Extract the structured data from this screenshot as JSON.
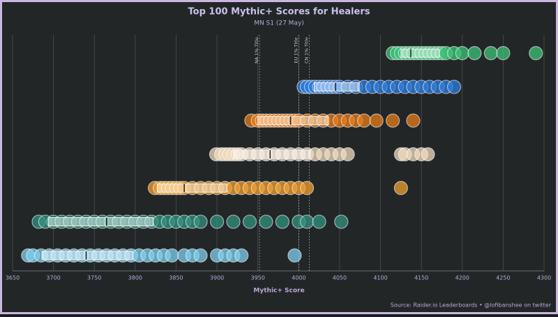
{
  "chart_data": {
    "type": "strip",
    "title": "Top 100 Mythic+ Scores for Healers",
    "subtitle": "MN S1 (27 May)",
    "xlabel": "Mythic+ Score",
    "source": "Source: Raider.io Leaderboards • @lofibanshee on twitter",
    "xlim": [
      3650,
      4300
    ],
    "xticks": [
      3650,
      3700,
      3750,
      3800,
      3850,
      3900,
      3950,
      4000,
      4050,
      4100,
      4150,
      4200,
      4250,
      4300
    ],
    "grid": true,
    "reference_lines": [
      {
        "value": 3952,
        "label": "NA 1% Title"
      },
      {
        "value": 4000,
        "label": "EU 1% Title"
      },
      {
        "value": 4013,
        "label": "CN 1% Title"
      }
    ],
    "series": [
      {
        "color": "#3fc47a",
        "box": {
          "q1": 4125,
          "median": 4137,
          "q3": 4172
        },
        "values": [
          4115,
          4120,
          4125,
          4130,
          4135,
          4140,
          4145,
          4150,
          4155,
          4160,
          4165,
          4170,
          4175,
          4180,
          4190,
          4200,
          4215,
          4235,
          4250,
          4290
        ]
      },
      {
        "color": "#2d7de0",
        "box": {
          "q1": 4019,
          "median": 4045,
          "q3": 4074
        },
        "values": [
          4006,
          4010,
          4015,
          4020,
          4025,
          4030,
          4035,
          4040,
          4045,
          4050,
          4060,
          4070,
          4080,
          4090,
          4100,
          4110,
          4120,
          4130,
          4140,
          4150,
          4160,
          4170,
          4180,
          4190
        ]
      },
      {
        "color": "#e87e1a",
        "box": {
          "q1": 3950,
          "median": 3990,
          "q3": 4036
        },
        "values": [
          3942,
          3950,
          3955,
          3960,
          3965,
          3970,
          3975,
          3980,
          3985,
          3990,
          3995,
          4000,
          4010,
          4020,
          4030,
          4040,
          4050,
          4060,
          4070,
          4080,
          4095,
          4115,
          4140
        ]
      },
      {
        "color": "#f2dcc0",
        "box": {
          "q1": 3920,
          "median": 3965,
          "q3": 4014
        },
        "values": [
          3899,
          3905,
          3910,
          3915,
          3920,
          3925,
          3930,
          3940,
          3950,
          3960,
          3970,
          3980,
          3990,
          4000,
          4010,
          4020,
          4030,
          4040,
          4050,
          4060,
          4125,
          4130,
          4140,
          4150,
          4158
        ]
      },
      {
        "color": "#f0a030",
        "box": {
          "q1": 3827,
          "median": 3860,
          "q3": 3912
        },
        "values": [
          3824,
          3830,
          3835,
          3840,
          3845,
          3850,
          3855,
          3860,
          3870,
          3880,
          3890,
          3900,
          3910,
          3920,
          3930,
          3940,
          3950,
          3960,
          3970,
          3980,
          3990,
          4000,
          4010,
          4125
        ]
      },
      {
        "color": "#33937f",
        "box": {
          "q1": 3694,
          "median": 3765,
          "q3": 3822
        },
        "values": [
          3682,
          3690,
          3700,
          3710,
          3720,
          3730,
          3740,
          3750,
          3760,
          3770,
          3780,
          3790,
          3800,
          3810,
          3820,
          3830,
          3840,
          3850,
          3860,
          3870,
          3880,
          3900,
          3920,
          3940,
          3960,
          3980,
          4000,
          4010,
          4025,
          4052
        ]
      },
      {
        "color": "#7fd0f0",
        "box": {
          "q1": 3686,
          "median": 3740,
          "q3": 3797
        },
        "values": [
          3669,
          3675,
          3685,
          3695,
          3705,
          3715,
          3725,
          3735,
          3745,
          3755,
          3765,
          3775,
          3785,
          3795,
          3805,
          3815,
          3825,
          3835,
          3845,
          3860,
          3870,
          3880,
          3900,
          3910,
          3920,
          3930,
          3995
        ]
      }
    ]
  }
}
